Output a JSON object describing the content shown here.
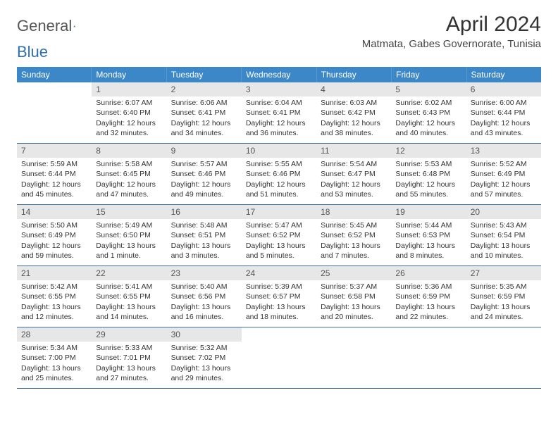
{
  "logo": {
    "text_general": "General",
    "text_blue": "Blue"
  },
  "title": "April 2024",
  "location": "Matmata, Gabes Governorate, Tunisia",
  "colors": {
    "header_bg": "#3b87c8",
    "daynum_bg": "#e7e7e7",
    "row_border": "#3b6fa0"
  },
  "dow": [
    "Sunday",
    "Monday",
    "Tuesday",
    "Wednesday",
    "Thursday",
    "Friday",
    "Saturday"
  ],
  "weeks": [
    [
      {
        "n": "",
        "sr": "",
        "ss": "",
        "d1": "",
        "d2": ""
      },
      {
        "n": "1",
        "sr": "Sunrise: 6:07 AM",
        "ss": "Sunset: 6:40 PM",
        "d1": "Daylight: 12 hours",
        "d2": "and 32 minutes."
      },
      {
        "n": "2",
        "sr": "Sunrise: 6:06 AM",
        "ss": "Sunset: 6:41 PM",
        "d1": "Daylight: 12 hours",
        "d2": "and 34 minutes."
      },
      {
        "n": "3",
        "sr": "Sunrise: 6:04 AM",
        "ss": "Sunset: 6:41 PM",
        "d1": "Daylight: 12 hours",
        "d2": "and 36 minutes."
      },
      {
        "n": "4",
        "sr": "Sunrise: 6:03 AM",
        "ss": "Sunset: 6:42 PM",
        "d1": "Daylight: 12 hours",
        "d2": "and 38 minutes."
      },
      {
        "n": "5",
        "sr": "Sunrise: 6:02 AM",
        "ss": "Sunset: 6:43 PM",
        "d1": "Daylight: 12 hours",
        "d2": "and 40 minutes."
      },
      {
        "n": "6",
        "sr": "Sunrise: 6:00 AM",
        "ss": "Sunset: 6:44 PM",
        "d1": "Daylight: 12 hours",
        "d2": "and 43 minutes."
      }
    ],
    [
      {
        "n": "7",
        "sr": "Sunrise: 5:59 AM",
        "ss": "Sunset: 6:44 PM",
        "d1": "Daylight: 12 hours",
        "d2": "and 45 minutes."
      },
      {
        "n": "8",
        "sr": "Sunrise: 5:58 AM",
        "ss": "Sunset: 6:45 PM",
        "d1": "Daylight: 12 hours",
        "d2": "and 47 minutes."
      },
      {
        "n": "9",
        "sr": "Sunrise: 5:57 AM",
        "ss": "Sunset: 6:46 PM",
        "d1": "Daylight: 12 hours",
        "d2": "and 49 minutes."
      },
      {
        "n": "10",
        "sr": "Sunrise: 5:55 AM",
        "ss": "Sunset: 6:46 PM",
        "d1": "Daylight: 12 hours",
        "d2": "and 51 minutes."
      },
      {
        "n": "11",
        "sr": "Sunrise: 5:54 AM",
        "ss": "Sunset: 6:47 PM",
        "d1": "Daylight: 12 hours",
        "d2": "and 53 minutes."
      },
      {
        "n": "12",
        "sr": "Sunrise: 5:53 AM",
        "ss": "Sunset: 6:48 PM",
        "d1": "Daylight: 12 hours",
        "d2": "and 55 minutes."
      },
      {
        "n": "13",
        "sr": "Sunrise: 5:52 AM",
        "ss": "Sunset: 6:49 PM",
        "d1": "Daylight: 12 hours",
        "d2": "and 57 minutes."
      }
    ],
    [
      {
        "n": "14",
        "sr": "Sunrise: 5:50 AM",
        "ss": "Sunset: 6:49 PM",
        "d1": "Daylight: 12 hours",
        "d2": "and 59 minutes."
      },
      {
        "n": "15",
        "sr": "Sunrise: 5:49 AM",
        "ss": "Sunset: 6:50 PM",
        "d1": "Daylight: 13 hours",
        "d2": "and 1 minute."
      },
      {
        "n": "16",
        "sr": "Sunrise: 5:48 AM",
        "ss": "Sunset: 6:51 PM",
        "d1": "Daylight: 13 hours",
        "d2": "and 3 minutes."
      },
      {
        "n": "17",
        "sr": "Sunrise: 5:47 AM",
        "ss": "Sunset: 6:52 PM",
        "d1": "Daylight: 13 hours",
        "d2": "and 5 minutes."
      },
      {
        "n": "18",
        "sr": "Sunrise: 5:45 AM",
        "ss": "Sunset: 6:52 PM",
        "d1": "Daylight: 13 hours",
        "d2": "and 7 minutes."
      },
      {
        "n": "19",
        "sr": "Sunrise: 5:44 AM",
        "ss": "Sunset: 6:53 PM",
        "d1": "Daylight: 13 hours",
        "d2": "and 8 minutes."
      },
      {
        "n": "20",
        "sr": "Sunrise: 5:43 AM",
        "ss": "Sunset: 6:54 PM",
        "d1": "Daylight: 13 hours",
        "d2": "and 10 minutes."
      }
    ],
    [
      {
        "n": "21",
        "sr": "Sunrise: 5:42 AM",
        "ss": "Sunset: 6:55 PM",
        "d1": "Daylight: 13 hours",
        "d2": "and 12 minutes."
      },
      {
        "n": "22",
        "sr": "Sunrise: 5:41 AM",
        "ss": "Sunset: 6:55 PM",
        "d1": "Daylight: 13 hours",
        "d2": "and 14 minutes."
      },
      {
        "n": "23",
        "sr": "Sunrise: 5:40 AM",
        "ss": "Sunset: 6:56 PM",
        "d1": "Daylight: 13 hours",
        "d2": "and 16 minutes."
      },
      {
        "n": "24",
        "sr": "Sunrise: 5:39 AM",
        "ss": "Sunset: 6:57 PM",
        "d1": "Daylight: 13 hours",
        "d2": "and 18 minutes."
      },
      {
        "n": "25",
        "sr": "Sunrise: 5:37 AM",
        "ss": "Sunset: 6:58 PM",
        "d1": "Daylight: 13 hours",
        "d2": "and 20 minutes."
      },
      {
        "n": "26",
        "sr": "Sunrise: 5:36 AM",
        "ss": "Sunset: 6:59 PM",
        "d1": "Daylight: 13 hours",
        "d2": "and 22 minutes."
      },
      {
        "n": "27",
        "sr": "Sunrise: 5:35 AM",
        "ss": "Sunset: 6:59 PM",
        "d1": "Daylight: 13 hours",
        "d2": "and 24 minutes."
      }
    ],
    [
      {
        "n": "28",
        "sr": "Sunrise: 5:34 AM",
        "ss": "Sunset: 7:00 PM",
        "d1": "Daylight: 13 hours",
        "d2": "and 25 minutes."
      },
      {
        "n": "29",
        "sr": "Sunrise: 5:33 AM",
        "ss": "Sunset: 7:01 PM",
        "d1": "Daylight: 13 hours",
        "d2": "and 27 minutes."
      },
      {
        "n": "30",
        "sr": "Sunrise: 5:32 AM",
        "ss": "Sunset: 7:02 PM",
        "d1": "Daylight: 13 hours",
        "d2": "and 29 minutes."
      },
      {
        "n": "",
        "sr": "",
        "ss": "",
        "d1": "",
        "d2": ""
      },
      {
        "n": "",
        "sr": "",
        "ss": "",
        "d1": "",
        "d2": ""
      },
      {
        "n": "",
        "sr": "",
        "ss": "",
        "d1": "",
        "d2": ""
      },
      {
        "n": "",
        "sr": "",
        "ss": "",
        "d1": "",
        "d2": ""
      }
    ]
  ]
}
